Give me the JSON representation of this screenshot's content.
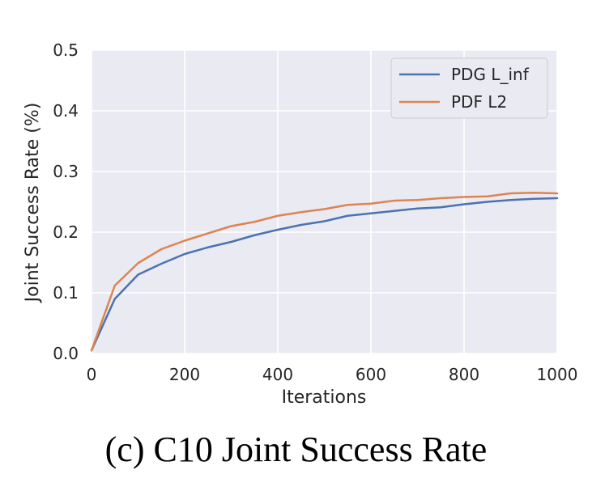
{
  "caption": "(c) C10 Joint Success Rate",
  "chart_data": {
    "type": "line",
    "title": "",
    "xlabel": "Iterations",
    "ylabel": "Joint Success Rate (%)",
    "xlim": [
      0,
      1000
    ],
    "ylim": [
      0.0,
      0.5
    ],
    "xticks": [
      "0",
      "200",
      "400",
      "600",
      "800",
      "1000"
    ],
    "yticks": [
      "0.0",
      "0.1",
      "0.2",
      "0.3",
      "0.4",
      "0.5"
    ],
    "grid": true,
    "legend_position": "top-right",
    "x": [
      0,
      50,
      100,
      150,
      200,
      250,
      300,
      350,
      400,
      450,
      500,
      550,
      600,
      650,
      700,
      750,
      800,
      850,
      900,
      950,
      1000
    ],
    "series": [
      {
        "name": "PDG L_inf",
        "color": "#4c72b0",
        "values": [
          0.005,
          0.09,
          0.13,
          0.148,
          0.164,
          0.175,
          0.184,
          0.195,
          0.204,
          0.212,
          0.218,
          0.227,
          0.231,
          0.235,
          0.239,
          0.241,
          0.246,
          0.25,
          0.253,
          0.255,
          0.256
        ]
      },
      {
        "name": "PDF L2",
        "color": "#dd8452",
        "values": [
          0.005,
          0.112,
          0.149,
          0.172,
          0.186,
          0.198,
          0.21,
          0.217,
          0.227,
          0.233,
          0.238,
          0.245,
          0.247,
          0.252,
          0.253,
          0.256,
          0.258,
          0.259,
          0.264,
          0.265,
          0.264
        ]
      }
    ]
  }
}
